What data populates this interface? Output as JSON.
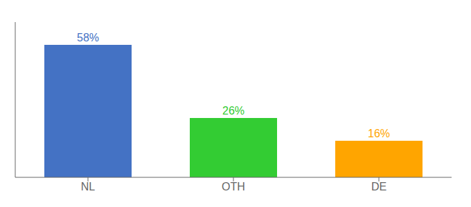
{
  "chart_data": {
    "type": "bar",
    "categories": [
      "NL",
      "OTH",
      "DE"
    ],
    "values": [
      58,
      26,
      16
    ],
    "value_labels": [
      "58%",
      "26%",
      "16%"
    ],
    "colors": [
      "#4472C4",
      "#33CC33",
      "#FFA500"
    ],
    "ylim": [
      0,
      68
    ],
    "data_labels": true,
    "grid": false,
    "tick_labels": "x"
  }
}
